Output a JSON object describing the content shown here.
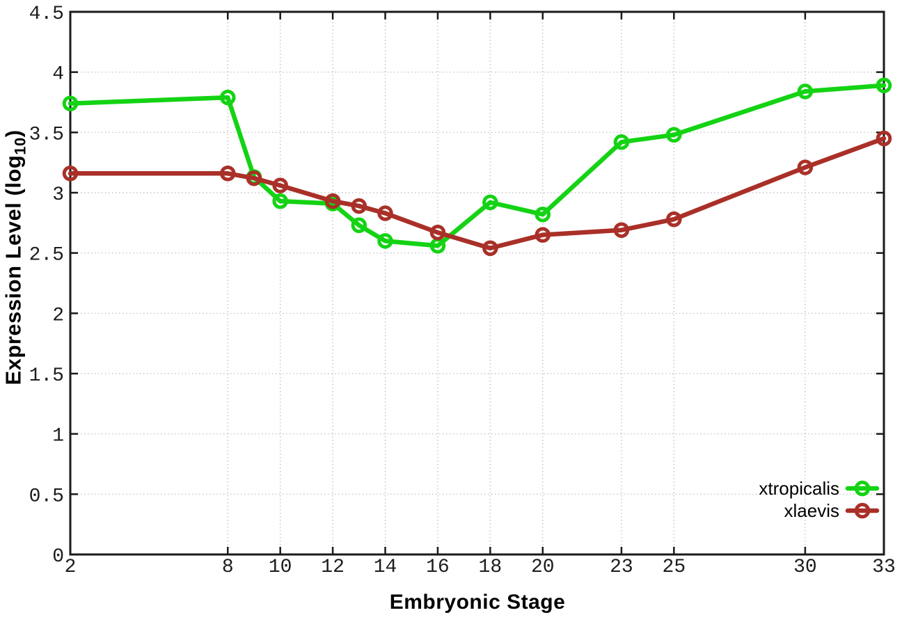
{
  "figure": {
    "background_color": "#ffffff",
    "axis_color": "#1a1a1a",
    "grid_color": "#b9b9b9",
    "tick_label_color": "#1c1c1c"
  },
  "chart_data": {
    "type": "line",
    "title": "",
    "xlabel": "Embryonic Stage",
    "ylabel": {
      "main": "Expression Level (log",
      "sub": "10",
      "end": ")"
    },
    "x": [
      2,
      8,
      9,
      10,
      12,
      13,
      14,
      16,
      18,
      20,
      23,
      25,
      30,
      33
    ],
    "series": [
      {
        "name": "xtropicalis",
        "color": "#14d314",
        "marker": "open-circle",
        "values": [
          3.74,
          3.79,
          3.13,
          2.93,
          2.91,
          2.73,
          2.6,
          2.56,
          2.92,
          2.82,
          3.42,
          3.48,
          3.84,
          3.89
        ]
      },
      {
        "name": "xlaevis",
        "color": "#a93028",
        "marker": "open-circle",
        "values": [
          3.16,
          3.16,
          3.12,
          3.06,
          2.93,
          2.89,
          2.83,
          2.67,
          2.54,
          2.65,
          2.69,
          2.78,
          3.21,
          3.45
        ]
      }
    ],
    "xlim": [
      2,
      33
    ],
    "ylim": [
      0,
      4.5
    ],
    "x_ticks": [
      2,
      8,
      10,
      12,
      14,
      16,
      18,
      20,
      23,
      25,
      30,
      33
    ],
    "x_tick_labels": [
      "2",
      "8",
      "10",
      "12",
      "14",
      "16",
      "18",
      "20",
      "23",
      "25",
      "30",
      "33"
    ],
    "y_ticks": [
      0,
      0.5,
      1,
      1.5,
      2,
      2.5,
      3,
      3.5,
      4,
      4.5
    ],
    "y_tick_labels": [
      "0",
      "0.5",
      "1",
      "1.5",
      "2",
      "2.5",
      "3",
      "3.5",
      "4",
      "4.5"
    ],
    "grid": true,
    "grid_style": "dotted",
    "tick_style": "inward-mirrored",
    "legend_position": "bottom-right"
  }
}
